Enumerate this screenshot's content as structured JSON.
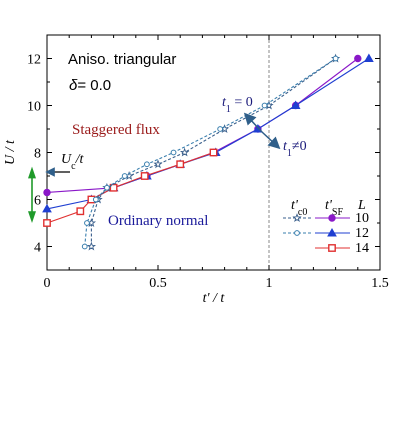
{
  "chart_data": {
    "type": "line",
    "annotations": {
      "model": "Aniso. triangular",
      "delta": "δ= 0.0",
      "staggered_flux": "Staggered flux",
      "ordinary_normal": "Ordinary normal",
      "uc_label": "U",
      "uc_sub": "c",
      "uc_tail": "/t",
      "t1_zero": "t",
      "t1_zero_sub": "1",
      "t1_zero_tail": " = 0",
      "t1_nonzero": "t",
      "t1_nonzero_sub": "1",
      "t1_nonzero_tail": "≠0"
    },
    "xlabel": "t' / t",
    "ylabel": "U / t",
    "xlim": [
      0,
      1.5
    ],
    "ylim": [
      3,
      13
    ],
    "xticks": [
      0,
      0.5,
      1,
      1.5
    ],
    "xtick_labels": [
      "0",
      "0.5",
      "1",
      "1.5"
    ],
    "yticks": [
      4,
      6,
      8,
      10,
      12
    ],
    "ytick_labels": [
      "4",
      "6",
      "8",
      "10",
      "12"
    ],
    "vline_x": 1.0,
    "legend": {
      "header_c0": "t'",
      "header_c0_sub": "c0",
      "header_sf": "t'",
      "header_sf_sub": "SF",
      "header_L": "L",
      "rows": [
        "10",
        "12",
        "14"
      ]
    },
    "series": [
      {
        "key": "sf10",
        "L": "10",
        "group": "SF",
        "marker": "circle",
        "color": "#8a18c8",
        "x": [
          0,
          0.3,
          0.45,
          0.6,
          0.75,
          0.95,
          1.12,
          1.4
        ],
        "y": [
          6.3,
          6.5,
          7.0,
          7.5,
          8.0,
          9.0,
          10.0,
          12.0
        ]
      },
      {
        "key": "sf12",
        "L": "12",
        "group": "SF",
        "marker": "triangle",
        "color": "#1f3fd1",
        "x": [
          0,
          0.2,
          0.3,
          0.45,
          0.6,
          0.76,
          0.95,
          1.12,
          1.45
        ],
        "y": [
          5.6,
          6.0,
          6.5,
          7.0,
          7.5,
          8.0,
          9.0,
          10.0,
          12.0
        ]
      },
      {
        "key": "sf14",
        "L": "14",
        "group": "SF",
        "marker": "square",
        "color": "#e03030",
        "x": [
          0,
          0.15,
          0.2,
          0.3,
          0.44,
          0.6,
          0.75
        ],
        "y": [
          5.0,
          5.5,
          6.0,
          6.5,
          7.0,
          7.5,
          8.0
        ]
      },
      {
        "key": "c0_star",
        "L": "10",
        "group": "c0",
        "marker": "star",
        "color": "#3a5f8c",
        "x": [
          0.2,
          0.2,
          0.23,
          0.27,
          0.37,
          0.5,
          0.62,
          0.8,
          1.0,
          1.3
        ],
        "y": [
          4.0,
          5.0,
          6.0,
          6.5,
          7.0,
          7.5,
          8.0,
          9.0,
          10.0,
          12.0
        ]
      },
      {
        "key": "c0_circle",
        "L": "12",
        "group": "c0",
        "marker": "circle-open",
        "color": "#3a7fae",
        "x": [
          0.17,
          0.18,
          0.22,
          0.27,
          0.35,
          0.45,
          0.57,
          0.78,
          0.98,
          1.3
        ],
        "y": [
          4.0,
          5.0,
          6.0,
          6.5,
          7.0,
          7.5,
          8.0,
          9.0,
          10.0,
          12.0
        ]
      }
    ]
  }
}
